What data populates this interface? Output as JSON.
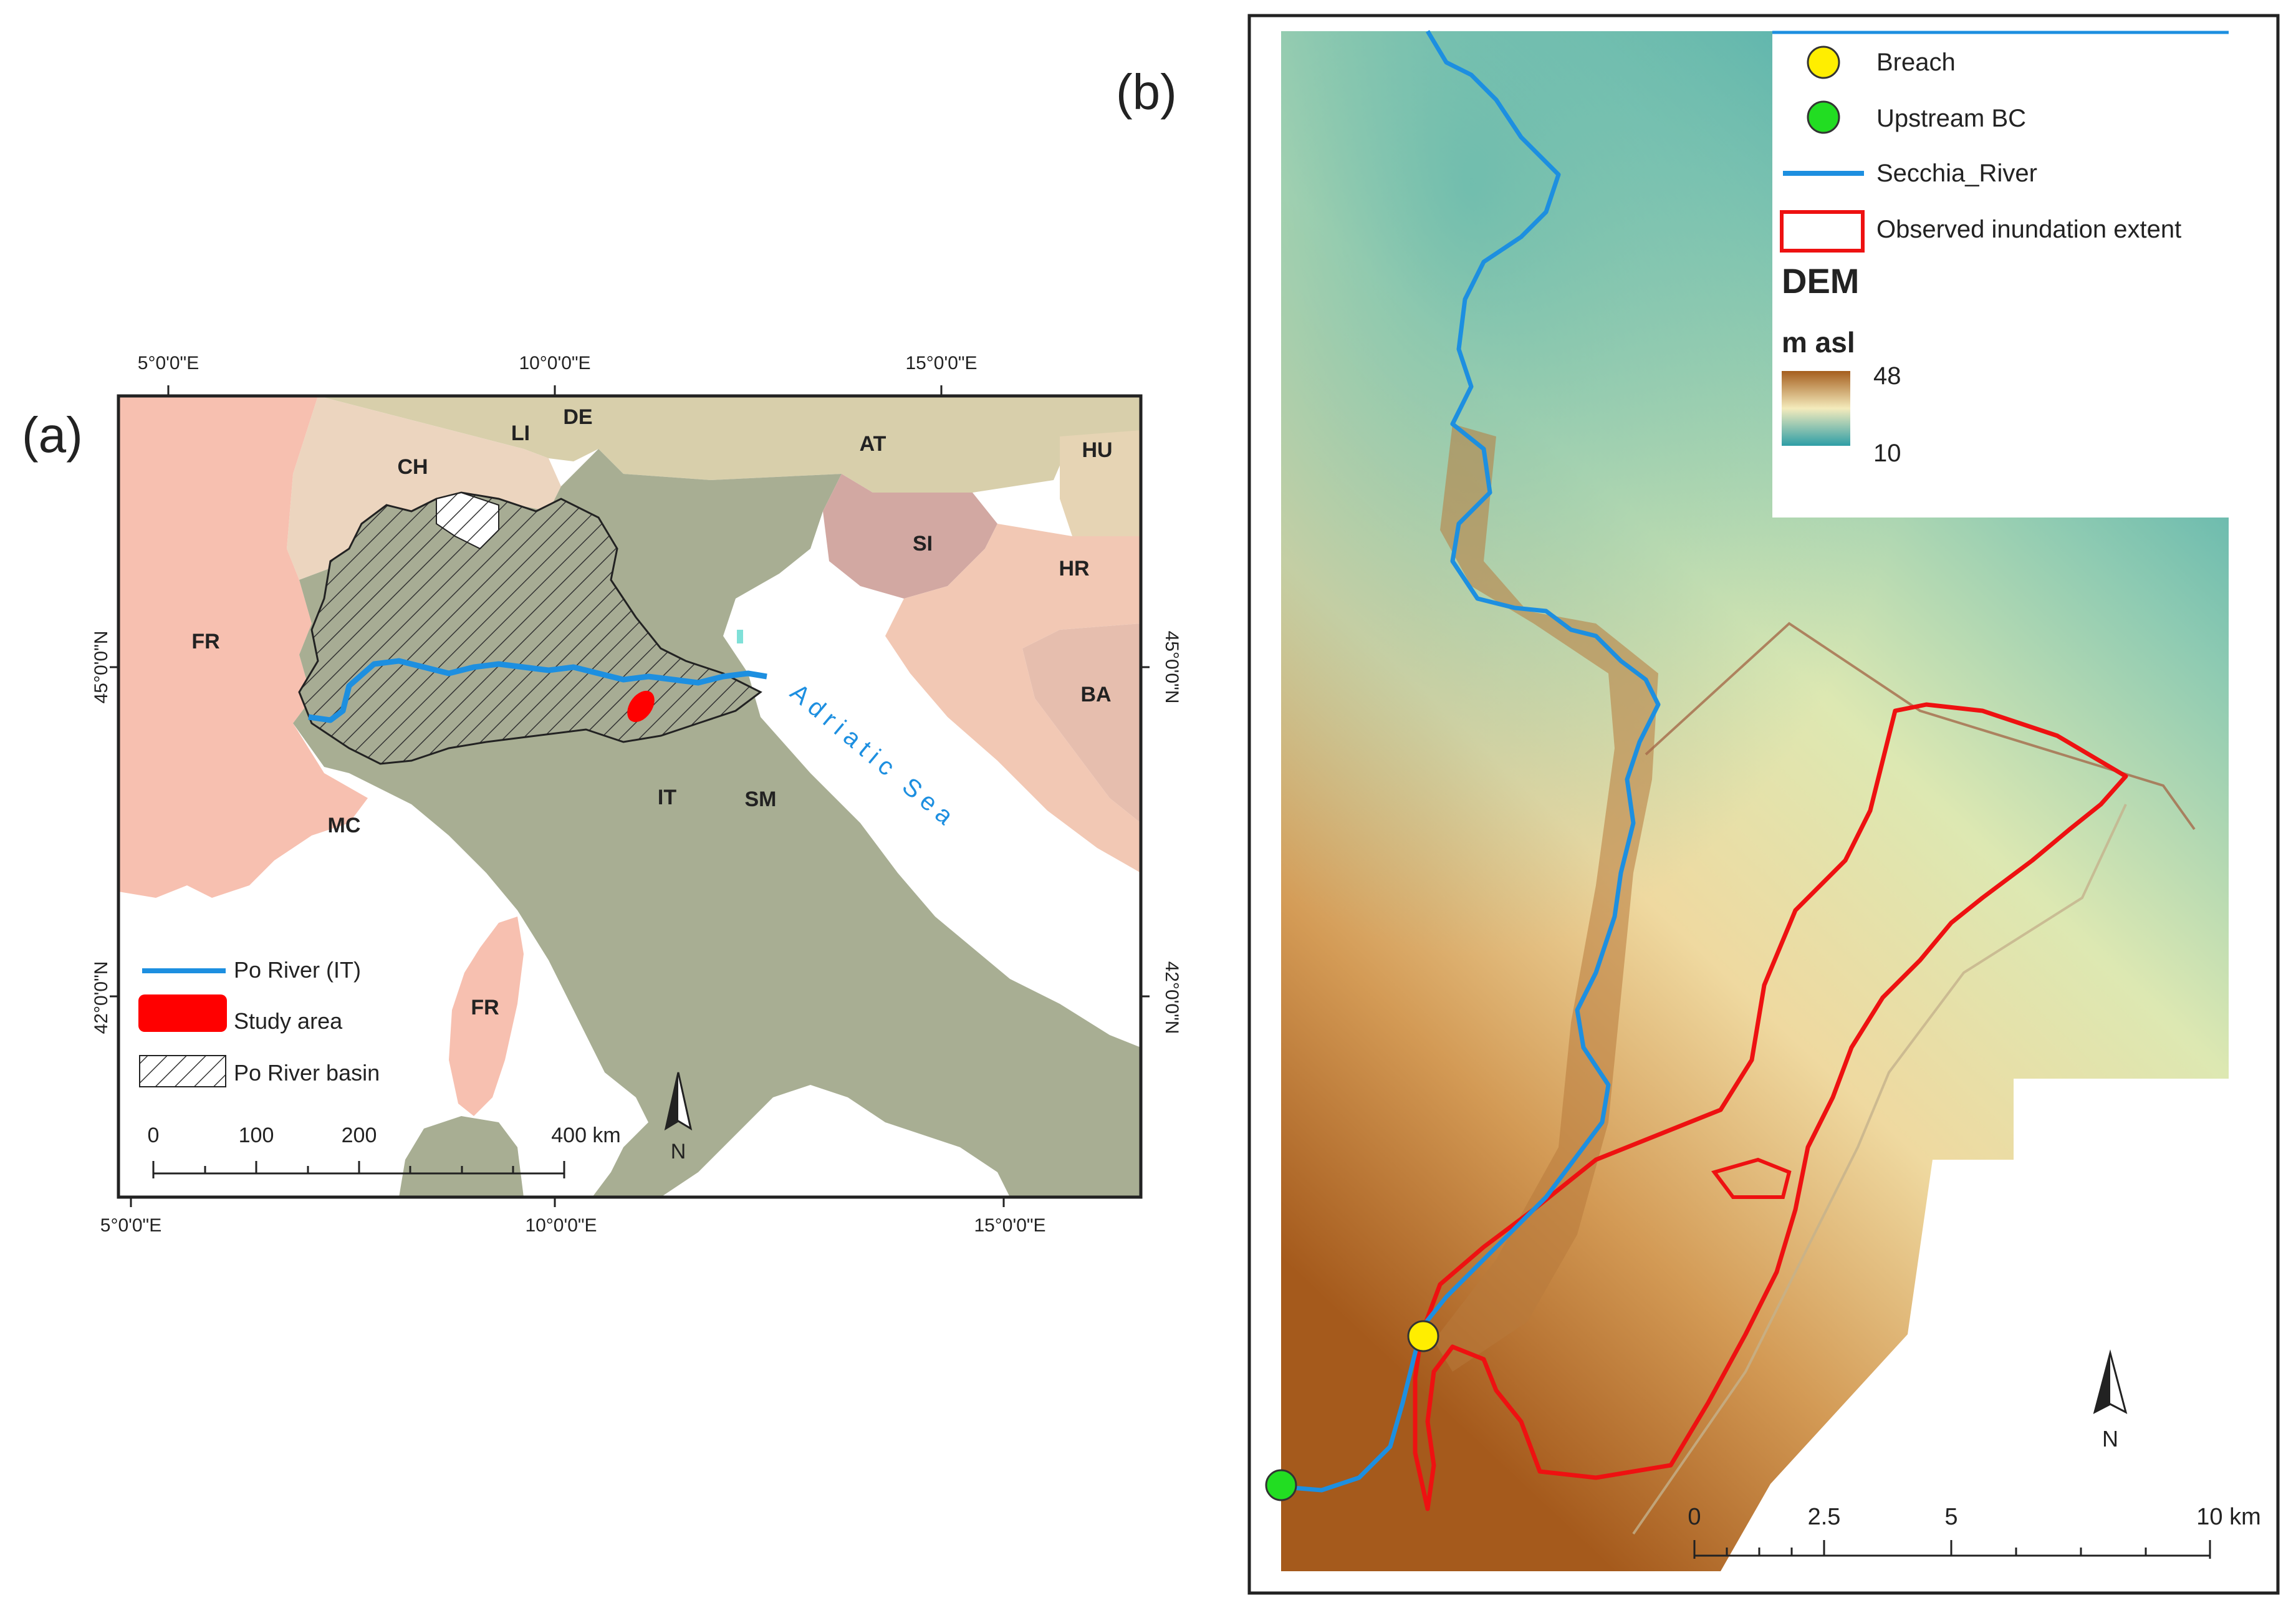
{
  "panel_a": {
    "label": "(a)",
    "lon_labels": [
      "5°0'0\"E",
      "10°0'0\"E",
      "15°0'0\"E"
    ],
    "lat_labels": [
      "45°0'0\"N",
      "42°0'0\"N"
    ],
    "countries": {
      "fr": "FR",
      "ch": "CH",
      "li": "LI",
      "de": "DE",
      "at": "AT",
      "hu": "HU",
      "si": "SI",
      "hr": "HR",
      "ba": "BA",
      "it": "IT",
      "sm": "SM",
      "mc": "MC",
      "fr_corsica": "FR"
    },
    "sea_label": "Adriatic Sea",
    "legend": {
      "po_river": "Po River (IT)",
      "study_area": "Study area",
      "basin": "Po River basin"
    },
    "scale": {
      "ticks": [
        "0",
        "100",
        "200",
        "400 km"
      ]
    },
    "north": "N",
    "colors": {
      "france": "#f7c0b0",
      "switzerland": "#ecd5bf",
      "austria_de": "#d8cfab",
      "slovenia": "#d2a8a2",
      "croatia": "#f2c8b4",
      "bosnia": "#e6beae",
      "italy": "#a8ae93",
      "river": "#1d8fe0",
      "study_area": "#ff0000"
    }
  },
  "panel_b": {
    "label": "(b)",
    "legend": {
      "breach": "Breach",
      "upstream": "Upstream BC",
      "river": "Secchia_River",
      "extent": "Observed inundation extent",
      "dem_title": "DEM",
      "dem_unit": "m asl",
      "dem_max": "48",
      "dem_min": "10"
    },
    "scale": {
      "ticks": [
        "0",
        "2.5",
        "5",
        "10 km"
      ]
    },
    "north": "N",
    "colors": {
      "dem_high": "#a55e1e",
      "dem_mid": "#f2e7b4",
      "dem_low": "#2e9ea6",
      "river": "#1d8fe0",
      "extent": "#ee1111",
      "breach": "#ffee00",
      "upstream": "#22dd22"
    }
  }
}
